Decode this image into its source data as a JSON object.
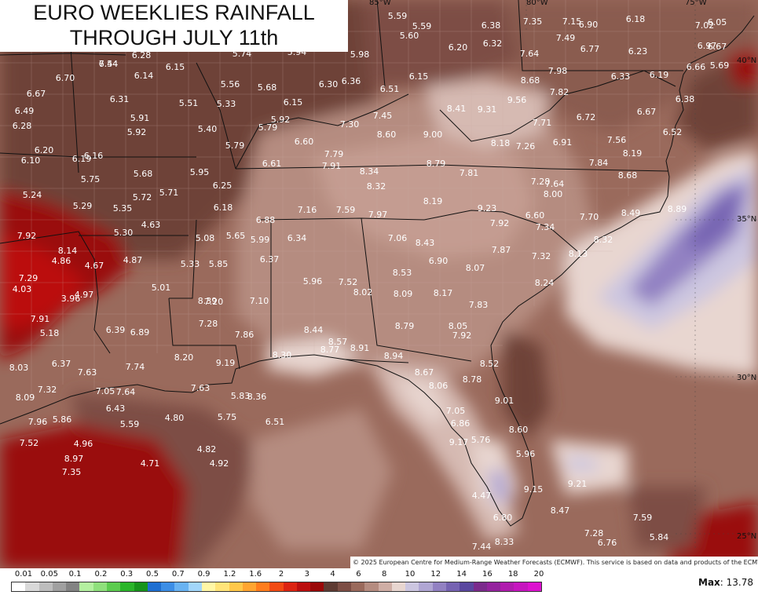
{
  "title": {
    "line1": "EURO WEEKLIES RAINFALL",
    "line2": "THROUGH JULY 11th"
  },
  "copyright": "© 2025 European Centre for Medium-Range Weather Forecasts (ECMWF). This service is based on data and products of the ECMWF.",
  "max": {
    "label": "Max",
    "value": ": 13.78"
  },
  "legend": {
    "ticks": [
      "0.01",
      "0.05",
      "0.1",
      "0.2",
      "0.3",
      "0.5",
      "0.7",
      "0.9",
      "1.2",
      "1.6",
      "2",
      "3",
      "4",
      "6",
      "8",
      "10",
      "12",
      "14",
      "16",
      "18",
      "20"
    ],
    "colors": [
      "#ffffff",
      "#d9d9d9",
      "#bdbdbd",
      "#a0a0a0",
      "#838383",
      "#b4f0a0",
      "#8fe07c",
      "#5ccc4f",
      "#2ab52a",
      "#17941c",
      "#1e6fd1",
      "#3c8ee6",
      "#69b3f2",
      "#a2d6fa",
      "#fff7a6",
      "#ffe479",
      "#ffc84a",
      "#ffa531",
      "#ff7d1d",
      "#f24b14",
      "#dc2412",
      "#bb0f0f",
      "#9a0808",
      "#5e3a32",
      "#7d4e45",
      "#9a6a5c",
      "#b58c80",
      "#cfaea5",
      "#e8d6d0",
      "#ccc6e0",
      "#b0a6d3",
      "#9281c2",
      "#7663b2",
      "#5a479f",
      "#7b2b8c",
      "#94239e",
      "#b01cae",
      "#c616bf",
      "#dc12cf"
    ]
  },
  "lat_labels": [
    {
      "text": "35°N"
    },
    {
      "text": "30°N"
    },
    {
      "text": "25°N"
    },
    {
      "text": "40°N"
    }
  ],
  "lon_labels": [
    {
      "text": "85°W"
    },
    {
      "text": "80°W"
    },
    {
      "text": "75°W"
    }
  ],
  "values": [
    "6.54",
    "6.28",
    "6.70",
    "6.14",
    "6.15",
    "5.74",
    "5.94",
    "5.98",
    "6.36",
    "6.30",
    "6.51",
    "6.15",
    "5.59",
    "5.60",
    "5.59",
    "6.38",
    "6.32",
    "6.20",
    "7.35",
    "7.15",
    "6.90",
    "7.49",
    "6.18",
    "7.02",
    "6.05",
    "6.97",
    "6.67",
    "6.66",
    "5.69",
    "6.67",
    "6.31",
    "5.56",
    "5.68",
    "5.51",
    "5.33",
    "6.15",
    "6.49",
    "6.28",
    "5.91",
    "5.92",
    "5.40",
    "5.92",
    "5.79",
    "7.30",
    "7.45",
    "8.41",
    "9.31",
    "9.56",
    "8.68",
    "7.64",
    "6.77",
    "6.23",
    "6.33",
    "6.19",
    "6.38",
    "7.82",
    "7.98",
    "6.67",
    "6.52",
    "6.60",
    "5.79",
    "7.79",
    "8.60",
    "9.00",
    "7.71",
    "6.72",
    "8.18",
    "7.26",
    "6.91",
    "7.56",
    "8.19",
    "6.20",
    "6.10",
    "6.16",
    "6.19",
    "5.75",
    "5.68",
    "5.95",
    "6.61",
    "7.91",
    "8.34",
    "8.79",
    "7.84",
    "8.32",
    "7.81",
    "7.28",
    "7.64",
    "8.00",
    "8.68",
    "5.24",
    "5.29",
    "5.35",
    "5.72",
    "5.71",
    "6.25",
    "6.18",
    "6.88",
    "7.16",
    "7.59",
    "7.97",
    "8.19",
    "9.23",
    "6.60",
    "7.92",
    "7.34",
    "7.70",
    "8.49",
    "8.89",
    "7.92",
    "4.63",
    "5.30",
    "5.08",
    "5.65",
    "5.99",
    "6.34",
    "7.06",
    "8.43",
    "7.87",
    "7.32",
    "8.13",
    "8.32",
    "8.53",
    "8.14",
    "4.86",
    "4.67",
    "4.87",
    "5.33",
    "5.85",
    "6.37",
    "6.90",
    "8.07",
    "7.29",
    "4.03",
    "3.96",
    "4.97",
    "5.01",
    "5.96",
    "7.52",
    "8.02",
    "8.09",
    "8.17",
    "7.83",
    "8.24",
    "8.39",
    "7.10",
    "7.20",
    "7.91",
    "5.18",
    "6.39",
    "6.89",
    "7.28",
    "7.86",
    "8.44",
    "8.57",
    "8.79",
    "8.05",
    "7.92",
    "8.03",
    "6.37",
    "7.63",
    "7.74",
    "8.20",
    "8.77",
    "8.91",
    "8.30",
    "9.19",
    "8.94",
    "8.52",
    "7.32",
    "7.05",
    "7.64",
    "7.63",
    "8.67",
    "8.78",
    "8.09",
    "6.43",
    "5.83",
    "8.06",
    "8.36",
    "7.05",
    "9.01",
    "7.96",
    "5.86",
    "5.59",
    "4.80",
    "5.75",
    "6.51",
    "6.86",
    "8.60",
    "7.52",
    "4.96",
    "4.82",
    "5.76",
    "9.17",
    "8.97",
    "4.71",
    "4.92",
    "5.96",
    "7.35",
    "4.47",
    "9.15",
    "8.47",
    "9.21",
    "6.80",
    "7.59",
    "7.28",
    "7.44",
    "8.33",
    "5.84",
    "6.76",
    "7.44"
  ]
}
